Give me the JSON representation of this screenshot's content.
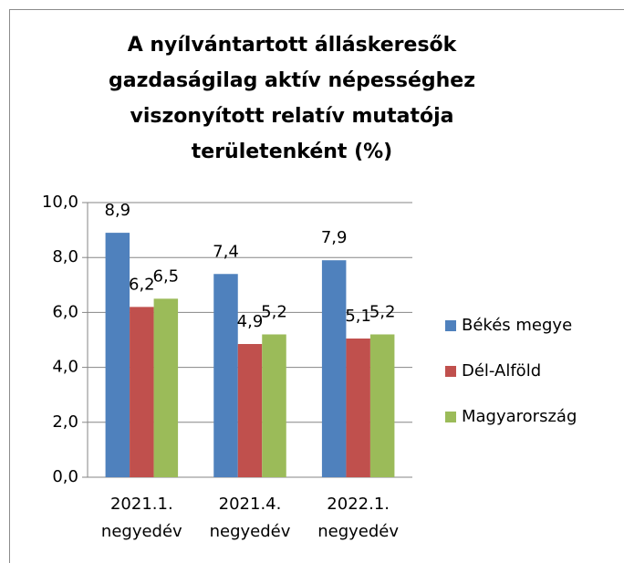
{
  "chart_data": {
    "type": "bar",
    "title": [
      "A nyílvántartott álláskeresők",
      "gazdaságilag aktív népességhez",
      "viszonyított relatív mutatója",
      "területenként (%)"
    ],
    "categories": [
      "2021.1. negyedév",
      "2021.4. negyedév",
      "2022.1. negyedév"
    ],
    "series": [
      {
        "name": "Békés megye",
        "color": "#4f81bd",
        "values": [
          8.9,
          7.4,
          7.9
        ],
        "value_labels": [
          "8,9",
          "7,4",
          "7,9"
        ]
      },
      {
        "name": "Dél-Alföld",
        "color": "#c0504d",
        "values": [
          6.2,
          4.85,
          5.05
        ],
        "value_labels": [
          "6,2",
          "4,9",
          "5,1"
        ]
      },
      {
        "name": "Magyarország",
        "color": "#9bbb59",
        "values": [
          6.5,
          5.2,
          5.2
        ],
        "value_labels": [
          "6,5",
          "5,2",
          "5,2"
        ]
      }
    ],
    "ylim": [
      0,
      10
    ],
    "yticks": [
      {
        "value": 0,
        "label": "0,0"
      },
      {
        "value": 2,
        "label": "2,0"
      },
      {
        "value": 4,
        "label": "4,0"
      },
      {
        "value": 6,
        "label": "6,0"
      },
      {
        "value": 8,
        "label": "8,0"
      },
      {
        "value": 10,
        "label": "10,0"
      }
    ],
    "grid": true,
    "legend": "right"
  }
}
